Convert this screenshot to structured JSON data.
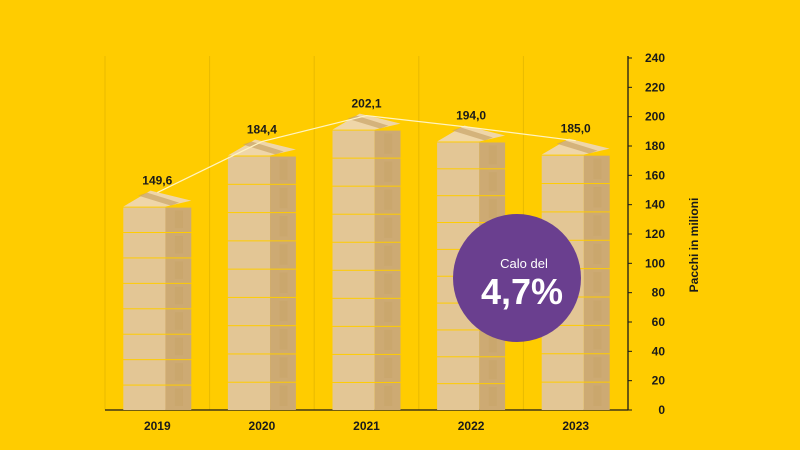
{
  "chart_data": {
    "type": "bar",
    "categories": [
      "2019",
      "2020",
      "2021",
      "2022",
      "2023"
    ],
    "values": [
      149.6,
      184.4,
      202.1,
      194.0,
      185.0
    ],
    "value_labels": [
      "149,6",
      "184,4",
      "202,1",
      "194,0",
      "185,0"
    ],
    "ylabel": "Pacchi in milioni",
    "ylim": [
      0,
      240
    ],
    "yticks": [
      "0",
      "20",
      "40",
      "60",
      "80",
      "100",
      "120",
      "140",
      "160",
      "180",
      "200",
      "220",
      "240"
    ],
    "y_axis_side": "right",
    "grid": "vertical separators",
    "connector_line": true,
    "bar_style": "stacked parcel boxes"
  },
  "badge": {
    "line1": "Calo del",
    "line2": "4,7%"
  },
  "colors": {
    "background": "#FFCC00",
    "box_face": "#E3C695",
    "box_side": "#CDAA73",
    "box_top": "#EFD6A8",
    "tape": "#C9A468",
    "badge": "#6A3F8F",
    "connector": "#FFF4C2"
  }
}
